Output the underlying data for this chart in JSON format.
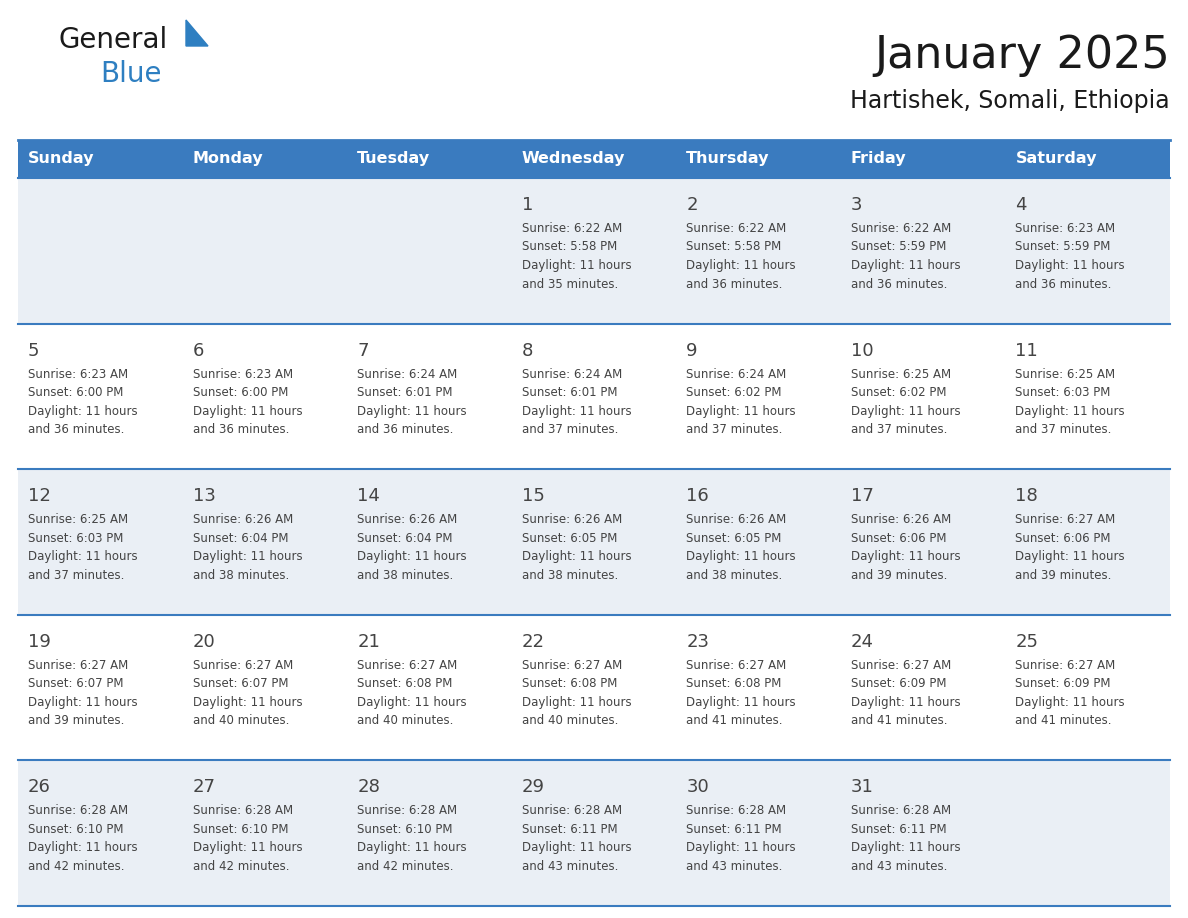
{
  "title": "January 2025",
  "subtitle": "Hartishek, Somali, Ethiopia",
  "days_of_week": [
    "Sunday",
    "Monday",
    "Tuesday",
    "Wednesday",
    "Thursday",
    "Friday",
    "Saturday"
  ],
  "header_bg": "#3A7BBF",
  "header_text": "#FFFFFF",
  "row_bg_odd": "#EAEFF5",
  "row_bg_even": "#FFFFFF",
  "divider_color": "#3A7BBF",
  "text_color": "#444444",
  "calendar": [
    [
      null,
      null,
      null,
      {
        "day": 1,
        "sunrise": "6:22 AM",
        "sunset": "5:58 PM",
        "daylight": "11 hours and 35 minutes."
      },
      {
        "day": 2,
        "sunrise": "6:22 AM",
        "sunset": "5:58 PM",
        "daylight": "11 hours and 36 minutes."
      },
      {
        "day": 3,
        "sunrise": "6:22 AM",
        "sunset": "5:59 PM",
        "daylight": "11 hours and 36 minutes."
      },
      {
        "day": 4,
        "sunrise": "6:23 AM",
        "sunset": "5:59 PM",
        "daylight": "11 hours and 36 minutes."
      }
    ],
    [
      {
        "day": 5,
        "sunrise": "6:23 AM",
        "sunset": "6:00 PM",
        "daylight": "11 hours and 36 minutes."
      },
      {
        "day": 6,
        "sunrise": "6:23 AM",
        "sunset": "6:00 PM",
        "daylight": "11 hours and 36 minutes."
      },
      {
        "day": 7,
        "sunrise": "6:24 AM",
        "sunset": "6:01 PM",
        "daylight": "11 hours and 36 minutes."
      },
      {
        "day": 8,
        "sunrise": "6:24 AM",
        "sunset": "6:01 PM",
        "daylight": "11 hours and 37 minutes."
      },
      {
        "day": 9,
        "sunrise": "6:24 AM",
        "sunset": "6:02 PM",
        "daylight": "11 hours and 37 minutes."
      },
      {
        "day": 10,
        "sunrise": "6:25 AM",
        "sunset": "6:02 PM",
        "daylight": "11 hours and 37 minutes."
      },
      {
        "day": 11,
        "sunrise": "6:25 AM",
        "sunset": "6:03 PM",
        "daylight": "11 hours and 37 minutes."
      }
    ],
    [
      {
        "day": 12,
        "sunrise": "6:25 AM",
        "sunset": "6:03 PM",
        "daylight": "11 hours and 37 minutes."
      },
      {
        "day": 13,
        "sunrise": "6:26 AM",
        "sunset": "6:04 PM",
        "daylight": "11 hours and 38 minutes."
      },
      {
        "day": 14,
        "sunrise": "6:26 AM",
        "sunset": "6:04 PM",
        "daylight": "11 hours and 38 minutes."
      },
      {
        "day": 15,
        "sunrise": "6:26 AM",
        "sunset": "6:05 PM",
        "daylight": "11 hours and 38 minutes."
      },
      {
        "day": 16,
        "sunrise": "6:26 AM",
        "sunset": "6:05 PM",
        "daylight": "11 hours and 38 minutes."
      },
      {
        "day": 17,
        "sunrise": "6:26 AM",
        "sunset": "6:06 PM",
        "daylight": "11 hours and 39 minutes."
      },
      {
        "day": 18,
        "sunrise": "6:27 AM",
        "sunset": "6:06 PM",
        "daylight": "11 hours and 39 minutes."
      }
    ],
    [
      {
        "day": 19,
        "sunrise": "6:27 AM",
        "sunset": "6:07 PM",
        "daylight": "11 hours and 39 minutes."
      },
      {
        "day": 20,
        "sunrise": "6:27 AM",
        "sunset": "6:07 PM",
        "daylight": "11 hours and 40 minutes."
      },
      {
        "day": 21,
        "sunrise": "6:27 AM",
        "sunset": "6:08 PM",
        "daylight": "11 hours and 40 minutes."
      },
      {
        "day": 22,
        "sunrise": "6:27 AM",
        "sunset": "6:08 PM",
        "daylight": "11 hours and 40 minutes."
      },
      {
        "day": 23,
        "sunrise": "6:27 AM",
        "sunset": "6:08 PM",
        "daylight": "11 hours and 41 minutes."
      },
      {
        "day": 24,
        "sunrise": "6:27 AM",
        "sunset": "6:09 PM",
        "daylight": "11 hours and 41 minutes."
      },
      {
        "day": 25,
        "sunrise": "6:27 AM",
        "sunset": "6:09 PM",
        "daylight": "11 hours and 41 minutes."
      }
    ],
    [
      {
        "day": 26,
        "sunrise": "6:28 AM",
        "sunset": "6:10 PM",
        "daylight": "11 hours and 42 minutes."
      },
      {
        "day": 27,
        "sunrise": "6:28 AM",
        "sunset": "6:10 PM",
        "daylight": "11 hours and 42 minutes."
      },
      {
        "day": 28,
        "sunrise": "6:28 AM",
        "sunset": "6:10 PM",
        "daylight": "11 hours and 42 minutes."
      },
      {
        "day": 29,
        "sunrise": "6:28 AM",
        "sunset": "6:11 PM",
        "daylight": "11 hours and 43 minutes."
      },
      {
        "day": 30,
        "sunrise": "6:28 AM",
        "sunset": "6:11 PM",
        "daylight": "11 hours and 43 minutes."
      },
      {
        "day": 31,
        "sunrise": "6:28 AM",
        "sunset": "6:11 PM",
        "daylight": "11 hours and 43 minutes."
      },
      null
    ]
  ],
  "logo_color_general": "#1a1a1a",
  "logo_color_blue": "#2E7FC1",
  "logo_triangle_color": "#2E7FC1",
  "title_fontsize": 32,
  "subtitle_fontsize": 17,
  "dow_fontsize": 11.5,
  "day_num_fontsize": 13,
  "cell_text_fontsize": 8.5
}
